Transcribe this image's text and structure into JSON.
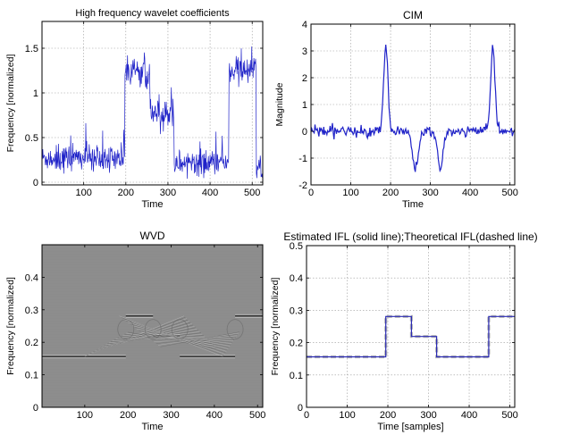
{
  "chart_data": [
    {
      "type": "line",
      "title": "High frequency wavelet coefficients",
      "xlabel": "Time",
      "ylabel": "Frequency [normalized]",
      "xlim": [
        1,
        525
      ],
      "ylim": [
        -0.03,
        1.8
      ],
      "xticks": [
        100,
        200,
        300,
        400,
        500
      ],
      "yticks": [
        0,
        0.5,
        1,
        1.5
      ],
      "grid": true,
      "color": "#1f22c8",
      "segments": [
        {
          "x_start": 1,
          "x_end": 198,
          "level": 0.27
        },
        {
          "x_start": 198,
          "x_end": 258,
          "level": 1.25
        },
        {
          "x_start": 258,
          "x_end": 315,
          "level": 0.75
        },
        {
          "x_start": 315,
          "x_end": 445,
          "level": 0.22
        },
        {
          "x_start": 445,
          "x_end": 510,
          "level": 1.25
        },
        {
          "x_start": 510,
          "x_end": 525,
          "level": 0.1
        }
      ]
    },
    {
      "type": "line",
      "title": "CIM",
      "xlabel": "Time",
      "ylabel": "Magnitude",
      "xlim": [
        0,
        512
      ],
      "ylim": [
        -2,
        4
      ],
      "xticks": [
        0,
        100,
        200,
        300,
        400,
        500
      ],
      "yticks": [
        -2,
        -1,
        0,
        1,
        2,
        3,
        4
      ],
      "grid": true,
      "color": "#1f22c8",
      "peaks": [
        {
          "x": 188,
          "y": 3.15
        },
        {
          "x": 262,
          "y": -1.45
        },
        {
          "x": 325,
          "y": -1.45
        },
        {
          "x": 457,
          "y": 3.15
        }
      ]
    },
    {
      "type": "heatmap",
      "title": "WVD",
      "xlabel": "Time",
      "ylabel": "Frequency [normalized]",
      "xlim": [
        1,
        512
      ],
      "ylim": [
        0,
        0.5
      ],
      "xticks": [
        100,
        200,
        300,
        400,
        500
      ],
      "yticks": [
        0,
        0.1,
        0.2,
        0.3,
        0.4
      ],
      "grid": false,
      "background": "#8c8c8c",
      "components": [
        {
          "x_start": 1,
          "x_end": 195,
          "freq": 0.156
        },
        {
          "x_start": 195,
          "x_end": 258,
          "freq": 0.281
        },
        {
          "x_start": 258,
          "x_end": 320,
          "freq": 0.219
        },
        {
          "x_start": 320,
          "x_end": 448,
          "freq": 0.156
        },
        {
          "x_start": 448,
          "x_end": 512,
          "freq": 0.281
        }
      ]
    },
    {
      "type": "line",
      "title": "Estimated IFL (solid line);Theoretical IFL(dashed line)",
      "xlabel": "Time [samples]",
      "ylabel": "Frequency [normalized]",
      "xlim": [
        0,
        512
      ],
      "ylim": [
        0,
        0.5
      ],
      "xticks": [
        0,
        100,
        200,
        300,
        400,
        500
      ],
      "yticks": [
        0,
        0.1,
        0.2,
        0.3,
        0.4,
        0.5
      ],
      "grid": true,
      "series": [
        {
          "style": "dashed",
          "color": "#b8b8b8",
          "x": [
            0,
            195,
            195,
            258,
            258,
            320,
            320,
            448,
            448,
            512
          ],
          "y": [
            0.156,
            0.156,
            0.281,
            0.281,
            0.219,
            0.219,
            0.156,
            0.156,
            0.281,
            0.281
          ]
        },
        {
          "style": "solid",
          "color": "#2a2ab4",
          "x": [
            0,
            195,
            195,
            258,
            258,
            320,
            320,
            448,
            448,
            512
          ],
          "y": [
            0.156,
            0.156,
            0.281,
            0.281,
            0.219,
            0.219,
            0.156,
            0.156,
            0.281,
            0.281
          ]
        }
      ]
    }
  ]
}
